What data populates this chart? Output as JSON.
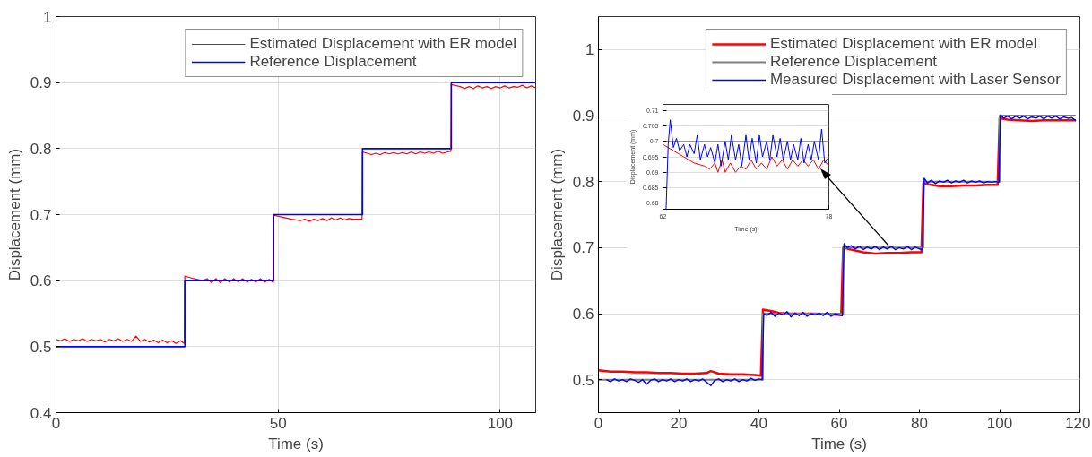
{
  "chart_data": [
    {
      "type": "line",
      "xlabel": "Time (s)",
      "ylabel": "Displacement (mm)",
      "xlim": [
        0,
        108
      ],
      "ylim": [
        0.4,
        1
      ],
      "xticks": [
        0,
        50,
        100
      ],
      "yticks": [
        0.4,
        0.5,
        0.6,
        0.7,
        0.8,
        0.9,
        1
      ],
      "grid": true,
      "legend": "top right",
      "series": [
        {
          "name": "Estimated Displacement with ER model",
          "color": "#ff0000",
          "x": [
            0,
            1,
            2,
            3,
            4,
            5,
            6,
            7,
            8,
            9,
            10,
            11,
            12,
            13,
            14,
            15,
            16,
            17,
            18,
            19,
            20,
            21,
            22,
            23,
            24,
            25,
            26,
            27,
            28,
            28.9,
            29,
            31,
            33,
            34,
            35,
            36,
            37,
            38,
            39,
            40,
            41,
            42,
            43,
            44,
            45,
            46,
            47,
            48,
            48.9,
            49,
            51,
            53,
            55,
            56,
            57,
            58,
            59,
            60,
            61,
            62,
            63,
            64,
            65,
            66,
            67,
            68.9,
            69,
            70,
            71,
            72,
            73,
            74,
            75,
            76,
            77,
            78,
            79,
            80,
            81,
            82,
            83,
            84,
            85,
            86,
            87,
            88.9,
            89,
            91,
            92,
            93,
            94,
            95,
            96,
            97,
            98,
            99,
            100,
            101,
            102,
            103,
            104,
            105,
            106,
            107,
            108
          ],
          "values": [
            0.511,
            0.509,
            0.512,
            0.508,
            0.511,
            0.509,
            0.512,
            0.508,
            0.511,
            0.509,
            0.511,
            0.507,
            0.511,
            0.509,
            0.512,
            0.508,
            0.511,
            0.508,
            0.516,
            0.508,
            0.511,
            0.507,
            0.51,
            0.506,
            0.51,
            0.506,
            0.509,
            0.505,
            0.509,
            0.505,
            0.607,
            0.603,
            0.6,
            0.603,
            0.597,
            0.603,
            0.597,
            0.603,
            0.598,
            0.603,
            0.598,
            0.603,
            0.598,
            0.602,
            0.598,
            0.603,
            0.598,
            0.602,
            0.597,
            0.699,
            0.696,
            0.693,
            0.691,
            0.693,
            0.69,
            0.693,
            0.691,
            0.694,
            0.691,
            0.695,
            0.692,
            0.695,
            0.692,
            0.694,
            0.693,
            0.693,
            0.795,
            0.793,
            0.791,
            0.793,
            0.791,
            0.794,
            0.792,
            0.794,
            0.792,
            0.794,
            0.792,
            0.795,
            0.792,
            0.795,
            0.793,
            0.795,
            0.793,
            0.796,
            0.793,
            0.796,
            0.897,
            0.894,
            0.891,
            0.894,
            0.891,
            0.895,
            0.892,
            0.894,
            0.891,
            0.894,
            0.892,
            0.895,
            0.892,
            0.894,
            0.893,
            0.896,
            0.892,
            0.895,
            0.892
          ]
        },
        {
          "name": "Reference Displacement",
          "color": "#0000ff",
          "x": [
            0,
            29,
            29,
            49,
            49,
            69,
            69,
            89,
            89,
            108
          ],
          "values": [
            0.5,
            0.5,
            0.6,
            0.6,
            0.7,
            0.7,
            0.8,
            0.8,
            0.9,
            0.9
          ]
        }
      ]
    },
    {
      "type": "line",
      "xlabel": "Time (s)",
      "ylabel": "Displacement (mm)",
      "xlim": [
        0,
        120
      ],
      "ylim": [
        0.45,
        1.05
      ],
      "xticks": [
        0,
        20,
        40,
        60,
        80,
        100,
        120
      ],
      "yticks": [
        0.5,
        0.6,
        0.7,
        0.8,
        0.9,
        1
      ],
      "grid": "y",
      "legend": "top right",
      "series": [
        {
          "name": "Estimated Displacement with ER model",
          "color": "#ff0000",
          "x": [
            0,
            3,
            6,
            9,
            12,
            15,
            18,
            21,
            24,
            27,
            28,
            30,
            33,
            36,
            39,
            40.5,
            41,
            43,
            45,
            48,
            51,
            54,
            57,
            60.5,
            61,
            63,
            66,
            69,
            72,
            75,
            78,
            80.5,
            81,
            83,
            85,
            88,
            91,
            94,
            97,
            99.5,
            100,
            102,
            105,
            108,
            111,
            114,
            117,
            119
          ],
          "values": [
            0.514,
            0.512,
            0.512,
            0.511,
            0.511,
            0.51,
            0.51,
            0.509,
            0.509,
            0.51,
            0.513,
            0.509,
            0.508,
            0.508,
            0.507,
            0.506,
            0.606,
            0.604,
            0.601,
            0.6,
            0.6,
            0.6,
            0.599,
            0.598,
            0.7,
            0.697,
            0.693,
            0.691,
            0.692,
            0.692,
            0.693,
            0.693,
            0.798,
            0.795,
            0.793,
            0.793,
            0.794,
            0.794,
            0.795,
            0.795,
            0.896,
            0.894,
            0.893,
            0.892,
            0.893,
            0.893,
            0.893,
            0.893
          ]
        },
        {
          "name": "Reference Displacement",
          "color": "#808080",
          "x": [
            0,
            41,
            41,
            61,
            61,
            81,
            81,
            100,
            100,
            119
          ],
          "values": [
            0.5,
            0.5,
            0.6,
            0.6,
            0.7,
            0.7,
            0.8,
            0.8,
            0.9,
            0.9
          ]
        },
        {
          "name": "Measured Displacement with Laser Sensor",
          "color": "#0000ff",
          "x": [
            2,
            3,
            4,
            5,
            6,
            7,
            8,
            9,
            10,
            11,
            12,
            13,
            14,
            15,
            16,
            17,
            18,
            19,
            20,
            21,
            22,
            23,
            24,
            25,
            26,
            27,
            28,
            29,
            30,
            31,
            32,
            33,
            34,
            35,
            36,
            37,
            38,
            39,
            40,
            40.8,
            41.2,
            42,
            43,
            44,
            45,
            46,
            47,
            48,
            49,
            50,
            51,
            52,
            53,
            54,
            55,
            56,
            57,
            58,
            59,
            60,
            60.8,
            61.2,
            62,
            63,
            64,
            65,
            66,
            67,
            68,
            69,
            70,
            71,
            72,
            73,
            74,
            75,
            76,
            77,
            78,
            79,
            80,
            80.8,
            81.2,
            82,
            83,
            84,
            85,
            86,
            87,
            88,
            89,
            90,
            91,
            92,
            93,
            94,
            95,
            96,
            97,
            98,
            99,
            99.8,
            100.2,
            101,
            102,
            103,
            104,
            105,
            106,
            107,
            108,
            109,
            110,
            111,
            112,
            113,
            114,
            115,
            116,
            117,
            118,
            119
          ],
          "values": [
            0.5,
            0.497,
            0.501,
            0.498,
            0.5,
            0.497,
            0.501,
            0.499,
            0.496,
            0.5,
            0.493,
            0.499,
            0.501,
            0.497,
            0.5,
            0.498,
            0.501,
            0.497,
            0.5,
            0.498,
            0.501,
            0.497,
            0.5,
            0.498,
            0.501,
            0.496,
            0.491,
            0.499,
            0.501,
            0.497,
            0.5,
            0.498,
            0.501,
            0.497,
            0.5,
            0.498,
            0.502,
            0.499,
            0.501,
            0.5,
            0.6,
            0.597,
            0.602,
            0.596,
            0.601,
            0.598,
            0.603,
            0.595,
            0.601,
            0.597,
            0.602,
            0.596,
            0.6,
            0.598,
            0.601,
            0.597,
            0.602,
            0.596,
            0.6,
            0.598,
            0.597,
            0.706,
            0.7,
            0.703,
            0.698,
            0.702,
            0.697,
            0.701,
            0.698,
            0.702,
            0.697,
            0.701,
            0.698,
            0.702,
            0.697,
            0.7,
            0.698,
            0.702,
            0.697,
            0.701,
            0.698,
            0.697,
            0.805,
            0.798,
            0.802,
            0.797,
            0.801,
            0.799,
            0.802,
            0.798,
            0.801,
            0.799,
            0.802,
            0.798,
            0.801,
            0.799,
            0.801,
            0.798,
            0.8,
            0.799,
            0.8,
            0.799,
            0.901,
            0.896,
            0.899,
            0.895,
            0.899,
            0.896,
            0.899,
            0.895,
            0.898,
            0.896,
            0.899,
            0.895,
            0.899,
            0.896,
            0.899,
            0.895,
            0.898,
            0.896,
            0.897,
            0.892
          ]
        }
      ]
    },
    {
      "type": "line",
      "xlabel": "Time (s)",
      "ylabel": "Displacement (mm)",
      "xlim": [
        62,
        78
      ],
      "ylim": [
        0.678,
        0.712
      ],
      "xticks": [
        62,
        78
      ],
      "yticks": [
        0.68,
        0.685,
        0.69,
        0.695,
        0.7,
        0.705,
        0.71
      ],
      "grid": "y",
      "series": [
        {
          "color": "#808080",
          "x": [
            62,
            78
          ],
          "values": [
            0.7,
            0.7
          ]
        },
        {
          "color": "#ff0000",
          "x": [
            62,
            63,
            64,
            65,
            66,
            66.5,
            67,
            67.3,
            67.7,
            68,
            68.5,
            69,
            69.5,
            70,
            70.5,
            71,
            71.5,
            72,
            72.5,
            73,
            73.5,
            74,
            74.5,
            75,
            75.5,
            76,
            76.5,
            77,
            77.5,
            78
          ],
          "values": [
            0.699,
            0.697,
            0.695,
            0.693,
            0.692,
            0.691,
            0.693,
            0.69,
            0.694,
            0.69,
            0.693,
            0.69,
            0.692,
            0.691,
            0.694,
            0.691,
            0.693,
            0.691,
            0.695,
            0.692,
            0.694,
            0.691,
            0.694,
            0.692,
            0.694,
            0.692,
            0.694,
            0.691,
            0.694,
            0.692
          ]
        },
        {
          "color": "#0000ff",
          "x": [
            62.3,
            62.5,
            62.7,
            63,
            63.3,
            63.6,
            64,
            64.3,
            64.6,
            65,
            65.3,
            65.6,
            66,
            66.3,
            66.6,
            67,
            67.3,
            67.6,
            68,
            68.3,
            68.6,
            69,
            69.3,
            69.6,
            70,
            70.3,
            70.6,
            71,
            71.3,
            71.6,
            72,
            72.3,
            72.6,
            73,
            73.3,
            73.6,
            74,
            74.3,
            74.6,
            75,
            75.3,
            75.6,
            76,
            76.3,
            76.6,
            77,
            77.3,
            77.6,
            78
          ],
          "values": [
            0.678,
            0.699,
            0.707,
            0.698,
            0.701,
            0.697,
            0.699,
            0.695,
            0.699,
            0.696,
            0.702,
            0.694,
            0.699,
            0.695,
            0.698,
            0.693,
            0.699,
            0.692,
            0.7,
            0.694,
            0.702,
            0.694,
            0.699,
            0.692,
            0.702,
            0.694,
            0.701,
            0.693,
            0.702,
            0.695,
            0.7,
            0.694,
            0.702,
            0.695,
            0.701,
            0.694,
            0.7,
            0.694,
            0.699,
            0.694,
            0.701,
            0.693,
            0.699,
            0.694,
            0.7,
            0.694,
            0.704,
            0.693,
            0.695
          ]
        }
      ]
    }
  ]
}
